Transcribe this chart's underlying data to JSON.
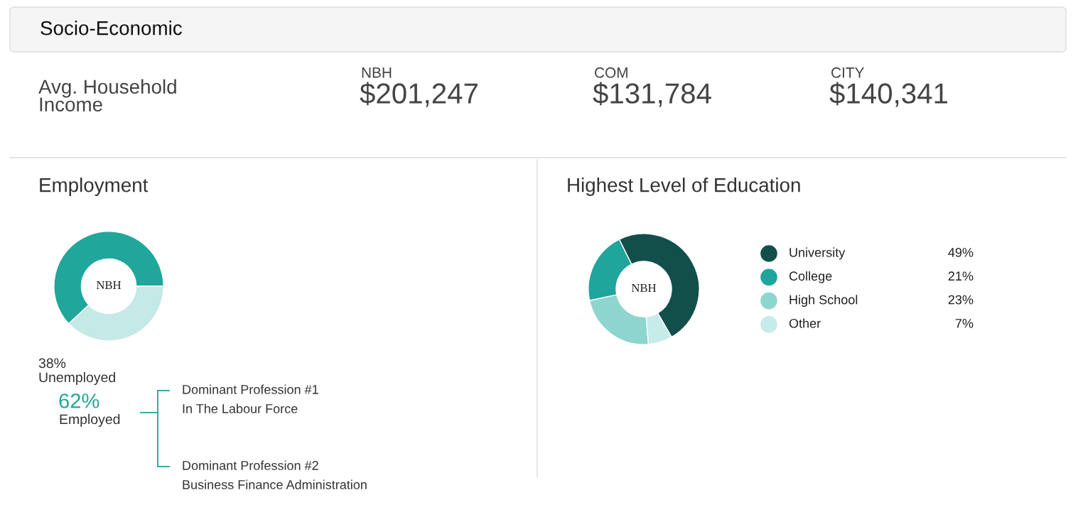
{
  "chart_data": [
    {
      "type": "other",
      "title": "Socio-Economic",
      "annotations": [
        "Avg. Household\nIncome",
        "NBH",
        "$201,247",
        "COM",
        "$131,784",
        "CITY",
        "$140,341"
      ]
    },
    {
      "type": "donut",
      "title": "Employment",
      "categories": [
        "Employed",
        "Unemployed"
      ],
      "values": [
        62,
        38
      ],
      "colors": [
        "#20a69b",
        "#c4e9e6"
      ],
      "value_labels": [
        "62%",
        "38%"
      ],
      "legend": "bottom left",
      "annotations": [
        "NBH",
        "Dominant Profession #1",
        "In The Labour Force",
        "Dominant Profession #2",
        "Business Finance Administration"
      ]
    },
    {
      "type": "donut",
      "title": "Highest Level of Education",
      "categories": [
        "University",
        "College",
        "High School",
        "Other"
      ],
      "values": [
        49,
        21,
        23,
        7
      ],
      "colors": [
        "#134f4a",
        "#1fa59b",
        "#8dd5ce",
        "#c7ebe8"
      ],
      "value_labels": [
        "49%",
        "21%",
        "23%",
        "7%"
      ],
      "legend": "right",
      "annotations": [
        "NBH"
      ]
    }
  ]
}
